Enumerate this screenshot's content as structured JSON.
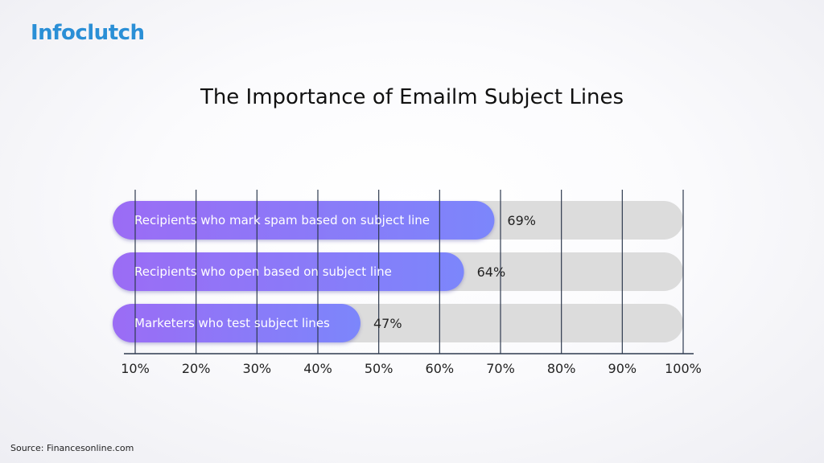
{
  "brand": {
    "logo_text": "Infoclutch",
    "accent_color": "#2a8fd6"
  },
  "source": "Source: Financesonline.com",
  "chart_data": {
    "type": "bar",
    "orientation": "horizontal",
    "title": "The Importance of Emailm Subject Lines",
    "categories": [
      "Recipients who mark spam based on subject line",
      "Recipients who open based on subject line",
      "Marketers who test subject lines"
    ],
    "values": [
      69,
      64,
      47
    ],
    "value_labels": [
      "69%",
      "64%",
      "47%"
    ],
    "xlim": [
      10,
      100
    ],
    "xticks": [
      "10%",
      "20%",
      "30%",
      "40%",
      "50%",
      "60%",
      "70%",
      "80%",
      "90%",
      "100%"
    ],
    "xtick_values": [
      10,
      20,
      30,
      40,
      50,
      60,
      70,
      80,
      90,
      100
    ],
    "grid": true,
    "colors": {
      "bar_start": "#9b6cf5",
      "bar_end": "#7c86fb",
      "track": "#dcdcdc",
      "grid": "#2e3a4f"
    }
  }
}
